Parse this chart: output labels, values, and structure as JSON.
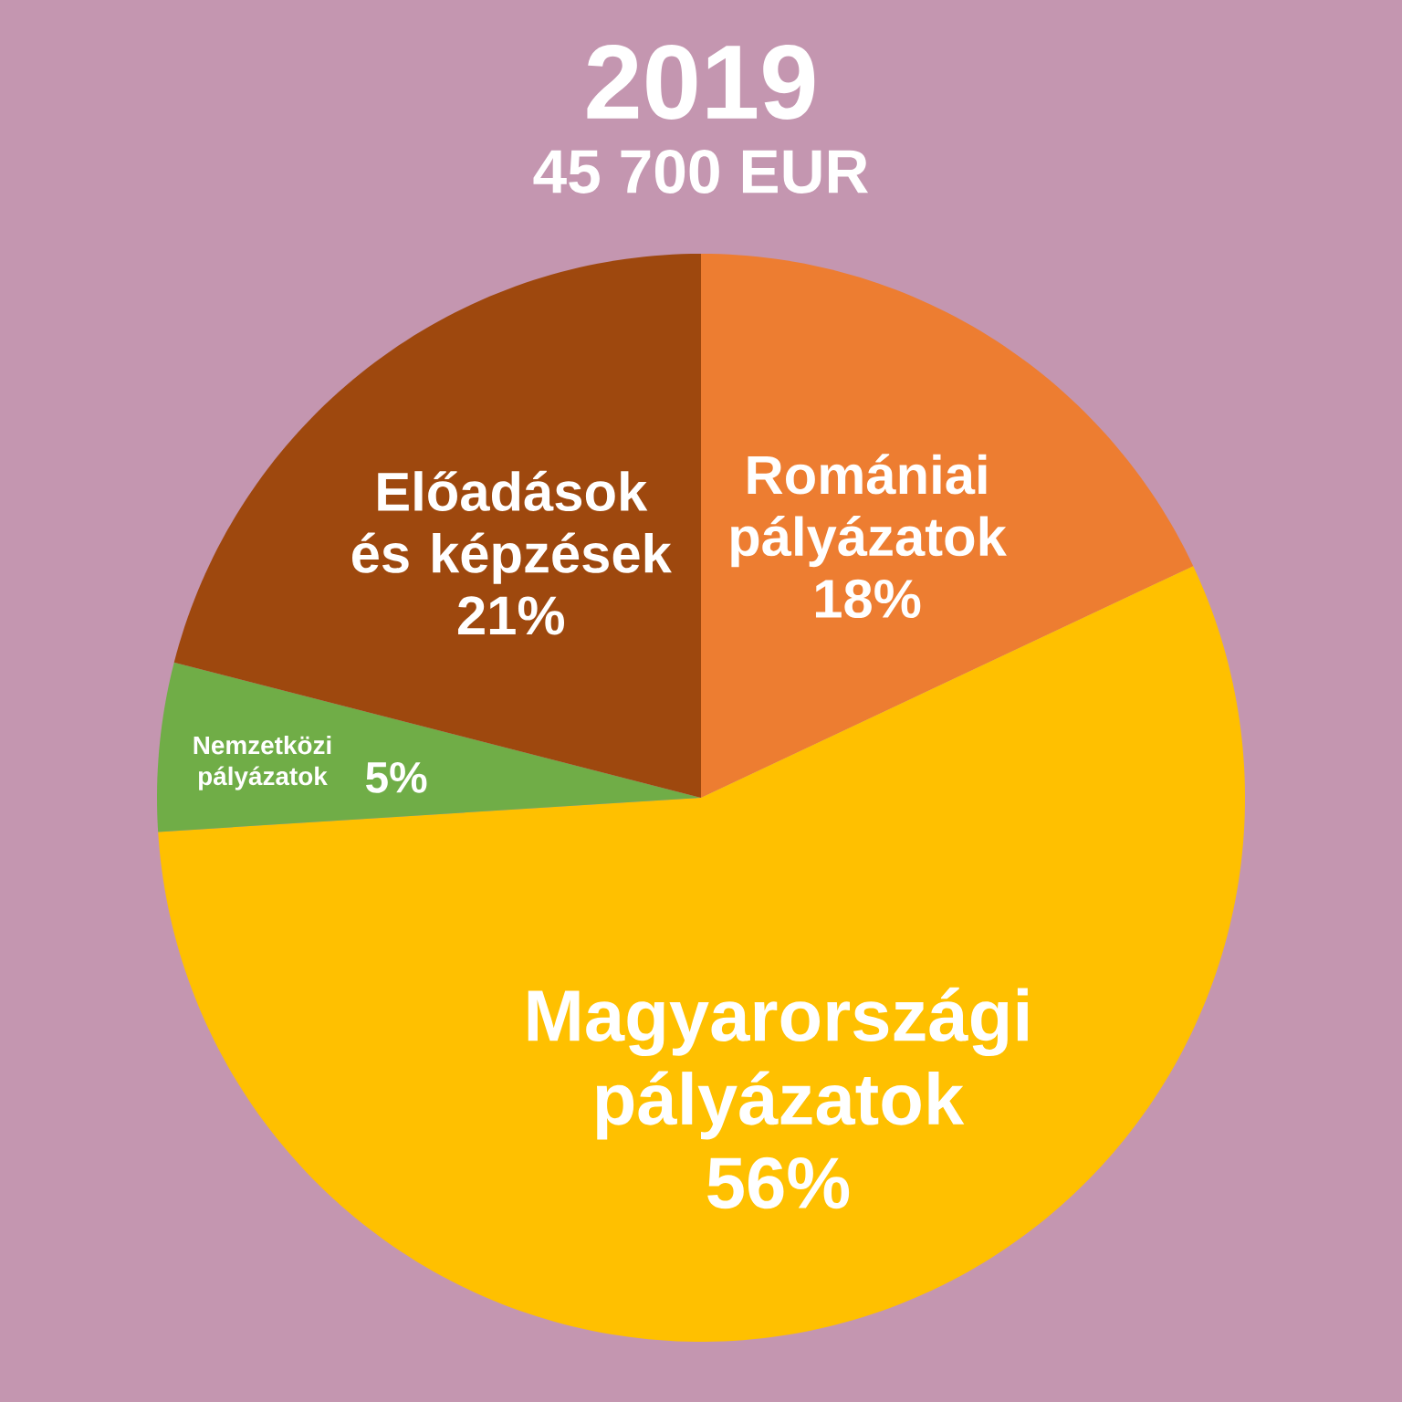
{
  "chart_data": {
    "type": "pie",
    "title": "2019",
    "subtitle": "45 700 EUR",
    "categories": [
      "Romániai pályázatok",
      "Magyarországi pályázatok",
      "Nemzetközi pályázatok",
      "Előadások és képzések"
    ],
    "values": [
      18,
      56,
      5,
      21
    ],
    "colors": [
      "#ed7d31",
      "#ffc000",
      "#70ad47",
      "#9e480e"
    ],
    "value_labels": [
      "18%",
      "56%",
      "5%",
      "21%"
    ]
  }
}
